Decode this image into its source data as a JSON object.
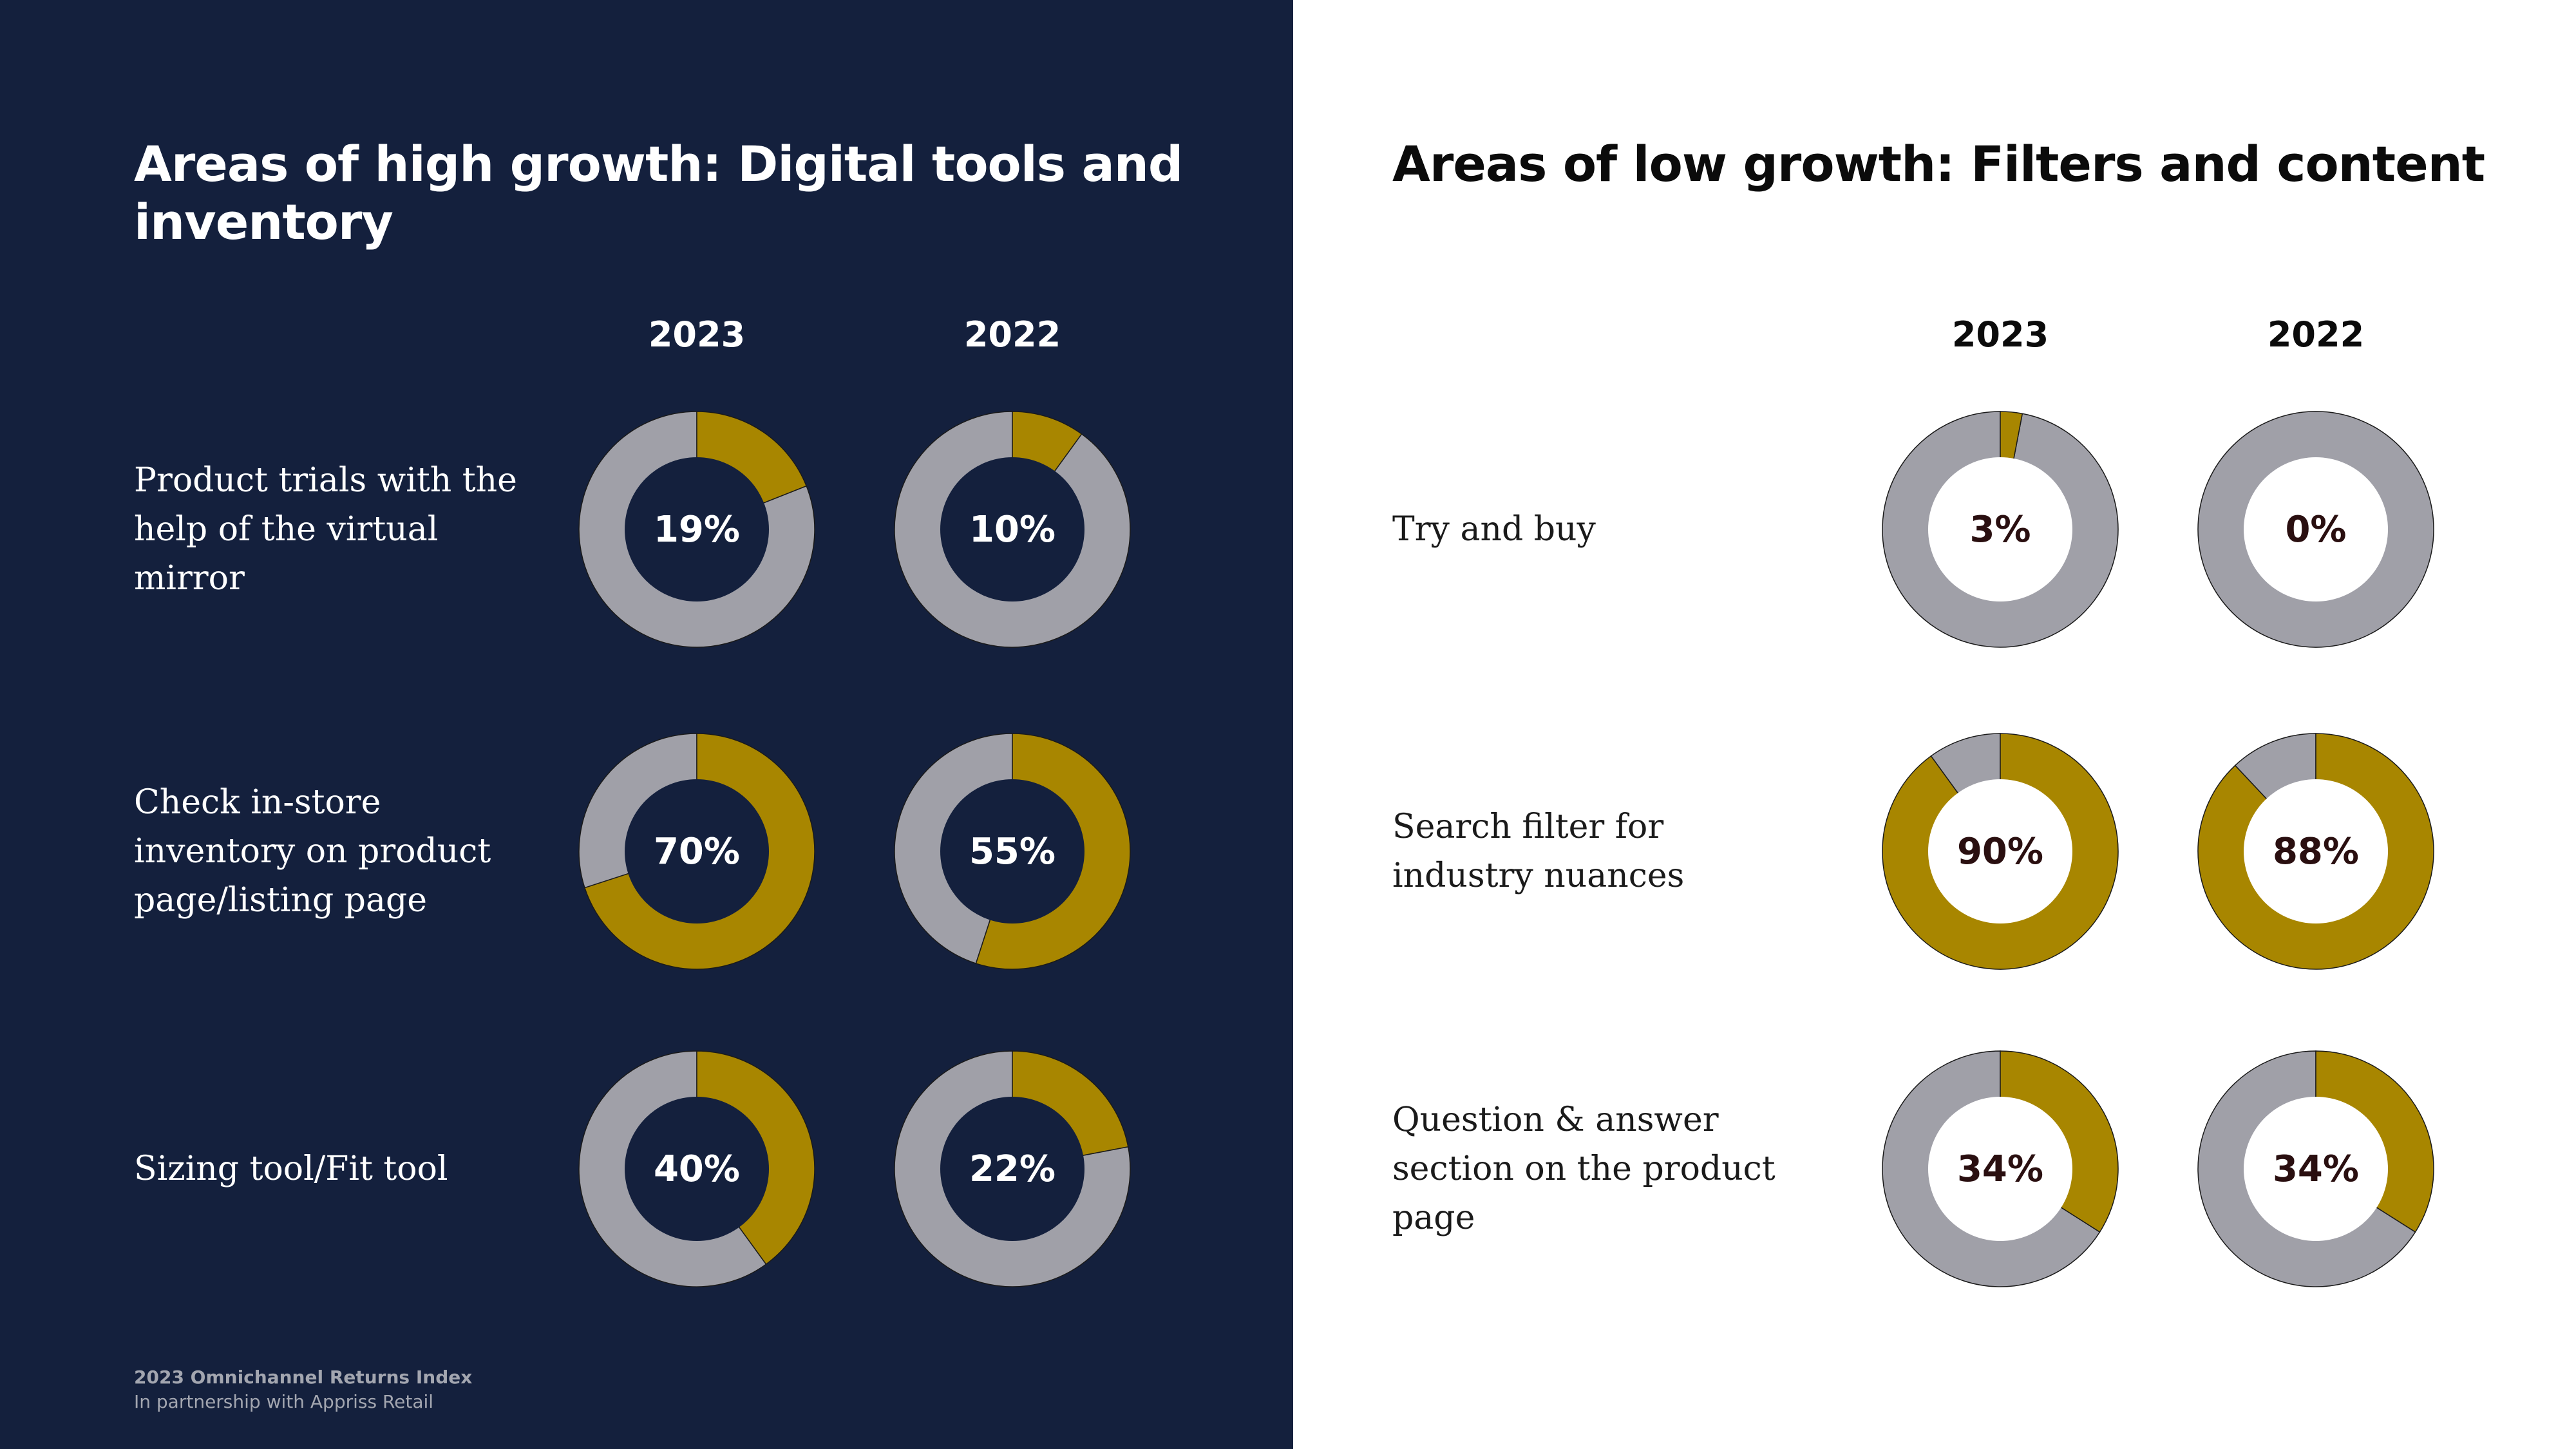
{
  "colors": {
    "dark_background": "#14203d",
    "light_background": "#ffffff",
    "gold": "#a88600",
    "gray": "#a0a0a8"
  },
  "chart_data": [
    {
      "type": "pie",
      "title": "Areas of high growth: Digital tools and inventory",
      "series_years": [
        "2023",
        "2022"
      ],
      "rows": [
        {
          "label": "Product trials with the help of the virtual mirror",
          "values": [
            19,
            10
          ],
          "value_labels": [
            "19%",
            "10%"
          ]
        },
        {
          "label": "Check in-store inventory on product page/listing page",
          "values": [
            70,
            55
          ],
          "value_labels": [
            "70%",
            "55%"
          ]
        },
        {
          "label": "Sizing tool/Fit tool",
          "values": [
            40,
            22
          ],
          "value_labels": [
            "40%",
            "22%"
          ]
        }
      ]
    },
    {
      "type": "pie",
      "title": "Areas of low growth: Filters and content",
      "series_years": [
        "2023",
        "2022"
      ],
      "rows": [
        {
          "label": "Try and buy",
          "values": [
            3,
            0
          ],
          "value_labels": [
            "3%",
            "0%"
          ]
        },
        {
          "label": "Search filter for industry nuances",
          "values": [
            90,
            88
          ],
          "value_labels": [
            "90%",
            "88%"
          ]
        },
        {
          "label": "Question & answer section on the product page",
          "values": [
            34,
            34
          ],
          "value_labels": [
            "34%",
            "34%"
          ]
        }
      ]
    }
  ],
  "footer": {
    "line1": "2023 Omnichannel Returns Index",
    "line2": "In partnership with Appriss Retail"
  }
}
